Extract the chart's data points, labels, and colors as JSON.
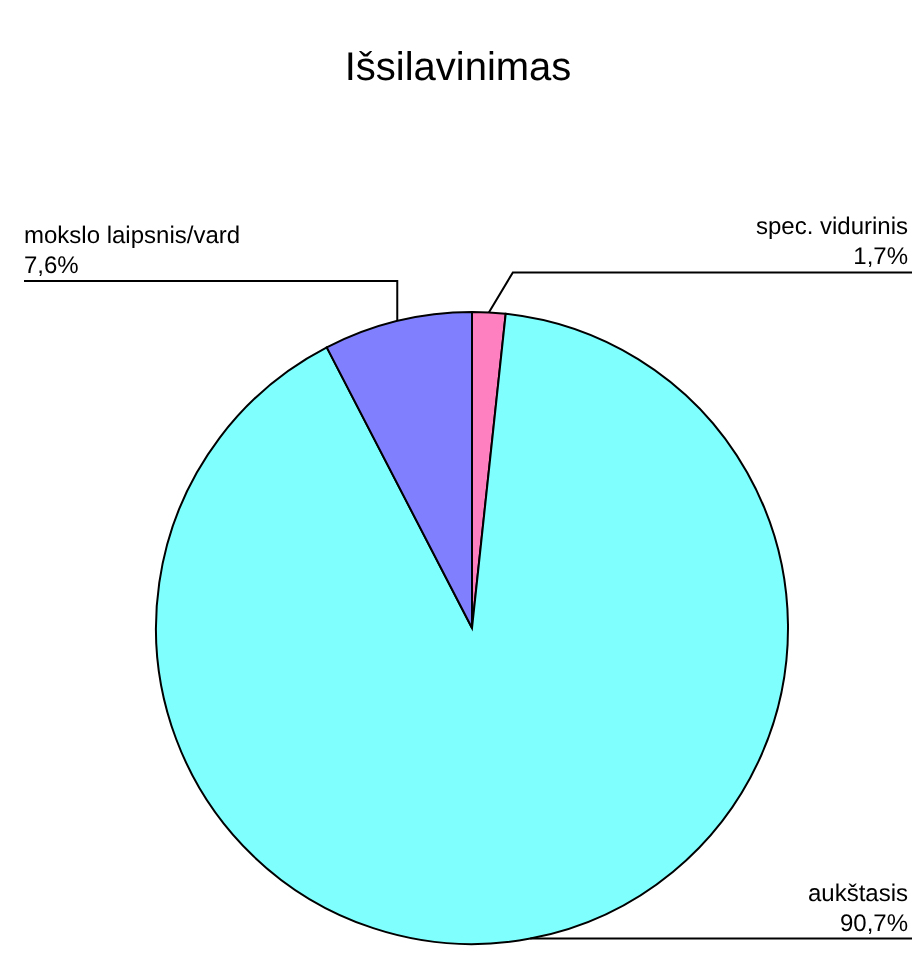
{
  "chart_data": {
    "type": "pie",
    "title": "Išsilavinimas",
    "categories": [
      "spec. vidurinis",
      "aukštasis",
      "mokslo laipsnis/vard"
    ],
    "values": [
      1.7,
      90.7,
      7.6
    ],
    "colors": [
      "#ff80c0",
      "#80ffff",
      "#8080ff"
    ],
    "value_labels": [
      "1,7%",
      "90,7%",
      "7,6%"
    ]
  }
}
